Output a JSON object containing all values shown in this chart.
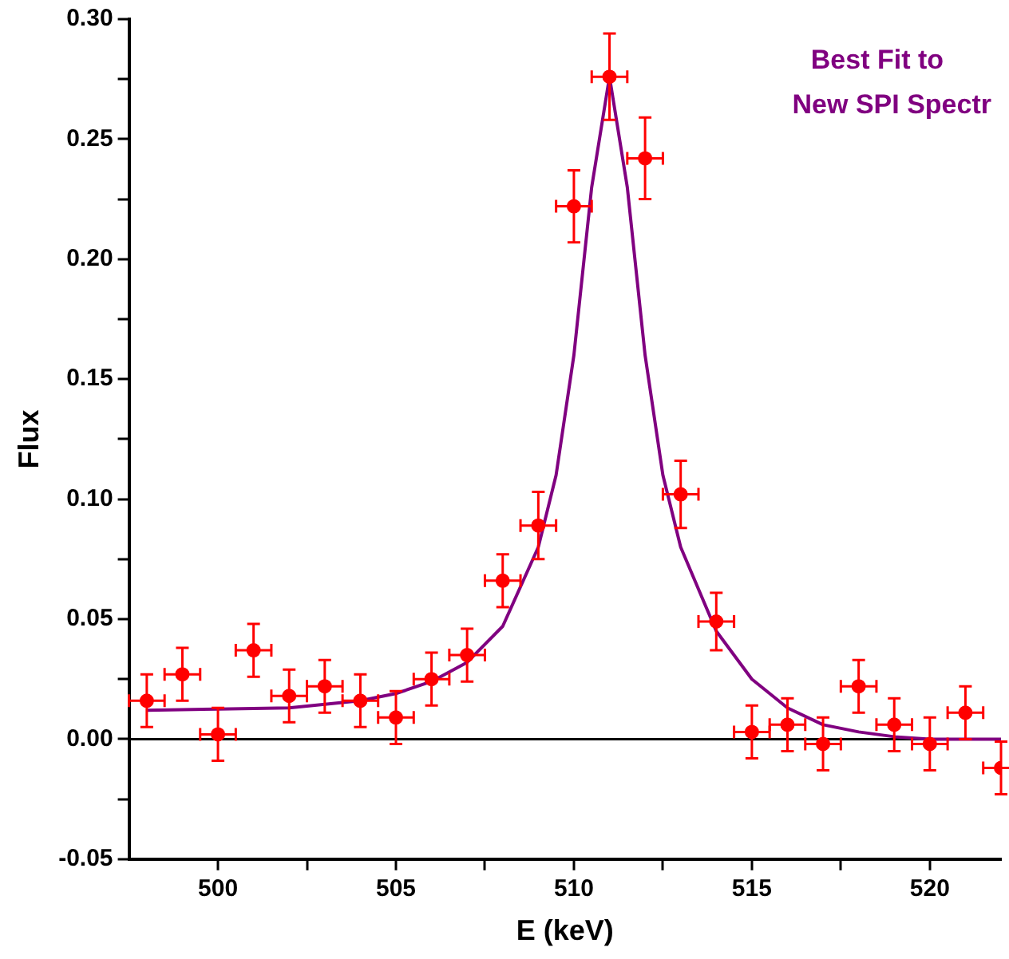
{
  "chart_data": {
    "type": "scatter",
    "xlabel": "E (keV)",
    "ylabel": "Flux",
    "annotations": [
      "Best Fit to",
      "New SPI Spectr"
    ],
    "xlim": [
      497.5,
      522
    ],
    "xticks": [
      {
        "value": 500,
        "label": "500"
      },
      {
        "value": 502.5,
        "label": null
      },
      {
        "value": 505,
        "label": "505"
      },
      {
        "value": 507.5,
        "label": null
      },
      {
        "value": 510,
        "label": "510"
      },
      {
        "value": 512.5,
        "label": null
      },
      {
        "value": 515,
        "label": "515"
      },
      {
        "value": 517.5,
        "label": null
      },
      {
        "value": 520,
        "label": "520"
      }
    ],
    "ylim": [
      -0.05,
      0.3
    ],
    "yticks": [
      {
        "value": -0.05,
        "label": "-0.05"
      },
      {
        "value": -0.025,
        "label": null
      },
      {
        "value": 0,
        "label": "0.00"
      },
      {
        "value": 0.025,
        "label": null
      },
      {
        "value": 0.05,
        "label": "0.05"
      },
      {
        "value": 0.075,
        "label": null
      },
      {
        "value": 0.1,
        "label": "0.10"
      },
      {
        "value": 0.125,
        "label": null
      },
      {
        "value": 0.15,
        "label": "0.15"
      },
      {
        "value": 0.175,
        "label": null
      },
      {
        "value": 0.2,
        "label": "0.20"
      },
      {
        "value": 0.225,
        "label": null
      },
      {
        "value": 0.25,
        "label": "0.25"
      },
      {
        "value": 0.275,
        "label": null
      },
      {
        "value": 0.3,
        "label": "0.30"
      }
    ],
    "ref_lines": [
      {
        "axis": "y",
        "value": 0,
        "color": "#000000"
      }
    ],
    "grid": false,
    "legend": false,
    "marker": "circle",
    "series": [
      {
        "type": "line",
        "color": "#800080",
        "line_style": "solid",
        "marker": "none",
        "x": [
          498,
          500,
          502,
          504,
          505,
          506,
          507,
          508,
          509,
          509.5,
          510,
          510.5,
          511,
          511.5,
          512,
          512.5,
          513,
          514,
          515,
          516,
          517,
          518,
          519,
          520,
          522
        ],
        "values": [
          0.012,
          0.0125,
          0.013,
          0.016,
          0.019,
          0.024,
          0.032,
          0.047,
          0.08,
          0.11,
          0.16,
          0.23,
          0.276,
          0.23,
          0.16,
          0.11,
          0.08,
          0.045,
          0.025,
          0.013,
          0.006,
          0.003,
          0.001,
          0,
          0
        ]
      },
      {
        "color": "#ff0000",
        "x": [
          498,
          499,
          500,
          501,
          502,
          503,
          504,
          505,
          506,
          507,
          508,
          509,
          510,
          511,
          512,
          513,
          514,
          515,
          516,
          517,
          518,
          519,
          520,
          521,
          522
        ],
        "values": [
          0.016,
          0.027,
          0.002,
          0.037,
          0.018,
          0.022,
          0.016,
          0.009,
          0.025,
          0.035,
          0.066,
          0.089,
          0.222,
          0.276,
          0.242,
          0.102,
          0.049,
          0.003,
          0.006,
          -0.002,
          0.022,
          0.006,
          -0.002,
          0.011,
          -0.012
        ],
        "errors": [
          0.011,
          0.011,
          0.011,
          0.011,
          0.011,
          0.011,
          0.011,
          0.011,
          0.011,
          0.011,
          0.011,
          0.014,
          0.015,
          0.018,
          0.017,
          0.014,
          0.012,
          0.011,
          0.011,
          0.011,
          0.011,
          0.011,
          0.011,
          0.011,
          0.011
        ],
        "xerrors": [
          0.5,
          0.5,
          0.5,
          0.5,
          0.5,
          0.5,
          0.5,
          0.5,
          0.5,
          0.5,
          0.5,
          0.5,
          0.5,
          0.5,
          0.5,
          0.5,
          0.5,
          0.5,
          0.5,
          0.5,
          0.5,
          0.5,
          0.5,
          0.5,
          0.5
        ]
      }
    ]
  }
}
